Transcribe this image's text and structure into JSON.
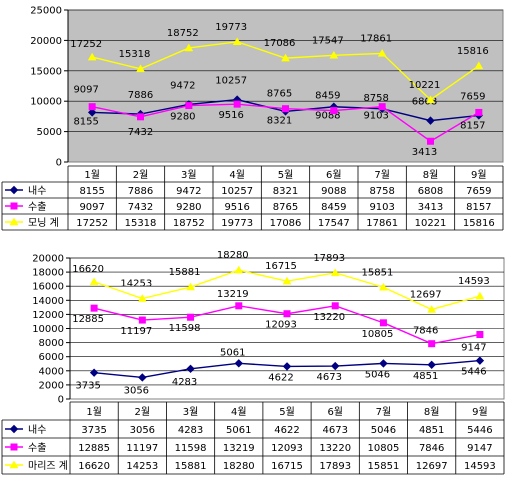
{
  "chart_data": [
    {
      "type": "line",
      "categories": [
        "1월",
        "2월",
        "3월",
        "4월",
        "5월",
        "6월",
        "7월",
        "8월",
        "9월"
      ],
      "ylim": [
        0,
        25000
      ],
      "yticks": [
        0,
        5000,
        10000,
        15000,
        20000,
        25000
      ],
      "grid": true,
      "plot_background": "#c0c0c0",
      "series": [
        {
          "name": "내수",
          "color": "#000080",
          "marker": "diamond",
          "values": [
            8155,
            7886,
            9472,
            10257,
            8321,
            9088,
            8758,
            6808,
            7659
          ]
        },
        {
          "name": "수출",
          "color": "#ff00ff",
          "marker": "square",
          "values": [
            9097,
            7432,
            9280,
            9516,
            8765,
            8459,
            9103,
            3413,
            8157
          ]
        },
        {
          "name": "모닝 계",
          "color": "#ffff00",
          "marker": "triangle",
          "values": [
            17252,
            15318,
            18752,
            19773,
            17086,
            17547,
            17861,
            10221,
            15816
          ]
        }
      ]
    },
    {
      "type": "line",
      "categories": [
        "1월",
        "2월",
        "3월",
        "4월",
        "5월",
        "6월",
        "7월",
        "8월",
        "9월"
      ],
      "ylim": [
        0,
        20000
      ],
      "yticks": [
        0,
        2000,
        4000,
        6000,
        8000,
        10000,
        12000,
        14000,
        16000,
        18000,
        20000
      ],
      "grid": true,
      "plot_background": "#ffffff",
      "series": [
        {
          "name": "내수",
          "color": "#000080",
          "marker": "diamond",
          "values": [
            3735,
            3056,
            4283,
            5061,
            4622,
            4673,
            5046,
            4851,
            5446
          ]
        },
        {
          "name": "수출",
          "color": "#ff00ff",
          "marker": "square",
          "values": [
            12885,
            11197,
            11598,
            13219,
            12093,
            13220,
            10805,
            7846,
            9147
          ]
        },
        {
          "name": "마리즈 계",
          "color": "#ffff00",
          "marker": "triangle",
          "values": [
            16620,
            14253,
            15881,
            18280,
            16715,
            17893,
            15851,
            12697,
            14593
          ]
        }
      ]
    }
  ]
}
